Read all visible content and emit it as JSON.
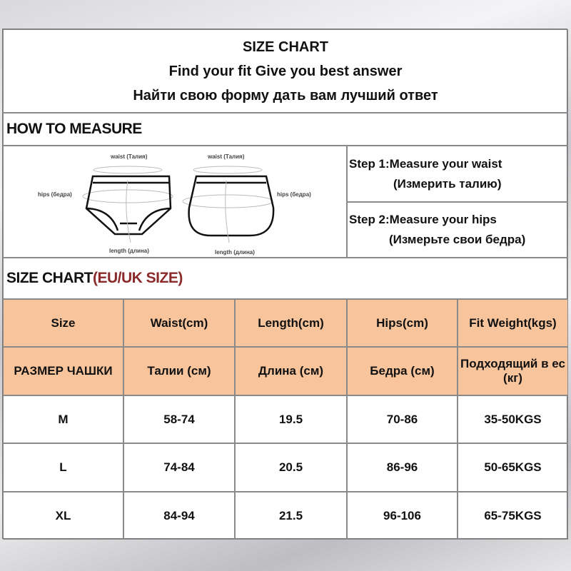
{
  "title": {
    "line1": "SIZE CHART",
    "line2": "Find your fit Give you best answer",
    "line3": "Найти свою форму дать вам лучший ответ"
  },
  "measure": {
    "heading": "HOW TO MEASURE",
    "diagram_labels": {
      "waist": "waist (Талия)",
      "hips": "hips (бедра)",
      "length": "length (длина)"
    },
    "step1": "Step 1:Measure your waist",
    "step1_ru": "(Измерить талию)",
    "step2": "Step 2:Measure your hips",
    "step2_ru": "(Измерьте свои бедра)"
  },
  "chart": {
    "heading": "SIZE CHART",
    "heading_accent": "(EU/UK SIZE)",
    "accent_color": "#8b2a2a",
    "header_bg": "#f8c49c",
    "headers": [
      "Size",
      "Waist(cm)",
      "Length(cm)",
      "Hips(cm)",
      "Fit  Weight(kgs)"
    ],
    "headers_ru": [
      "РАЗМЕР ЧАШКИ",
      "Талии (см)",
      "Длина (см)",
      "Бедра (см)",
      "Подходящий в ес (кг)"
    ],
    "rows": [
      [
        "M",
        "58-74",
        "19.5",
        "70-86",
        "35-50KGS"
      ],
      [
        "L",
        "74-84",
        "20.5",
        "86-96",
        "50-65KGS"
      ],
      [
        "XL",
        "84-94",
        "21.5",
        "96-106",
        "65-75KGS"
      ]
    ]
  }
}
